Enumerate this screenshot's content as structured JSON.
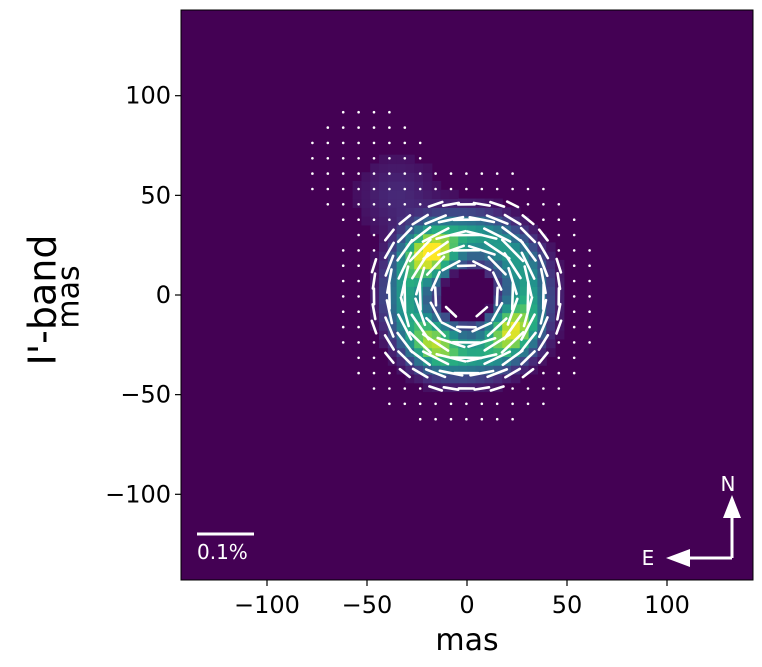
{
  "chart_data": {
    "type": "heatmap",
    "row_title": "I'-band",
    "xlabel": "mas",
    "ylabel": "mas",
    "xlim": [
      -143,
      143
    ],
    "ylim": [
      -143,
      143
    ],
    "x_ticks": [
      {
        "value": -100,
        "label": "−100"
      },
      {
        "value": -50,
        "label": "−50"
      },
      {
        "value": 0,
        "label": "0"
      },
      {
        "value": 50,
        "label": "50"
      },
      {
        "value": 100,
        "label": "100"
      }
    ],
    "y_ticks": [
      {
        "value": 100,
        "label": "100"
      },
      {
        "value": 50,
        "label": "50"
      },
      {
        "value": 0,
        "label": "0"
      },
      {
        "value": -50,
        "label": "−50"
      },
      {
        "value": -100,
        "label": "−100"
      }
    ],
    "colormap": "viridis",
    "background_color": "#440154",
    "intensity_model": {
      "ring_radius_mas": 30,
      "ring_width_mas": 12,
      "peaks": [
        {
          "x": -17,
          "y": 20,
          "amplitude": 1.0
        },
        {
          "x": 22,
          "y": -17,
          "amplitude": 0.8
        },
        {
          "x": -16,
          "y": -24,
          "amplitude": 0.65
        }
      ],
      "inner_hole_radius_mas": 14
    },
    "polarization_vectors": "azimuthal (centrosymmetric) pattern; length grows with polarized flux; dots outside the bright ring",
    "scale_bar": {
      "label": "0.1%"
    },
    "compass": {
      "north": "N",
      "east": "E"
    }
  }
}
